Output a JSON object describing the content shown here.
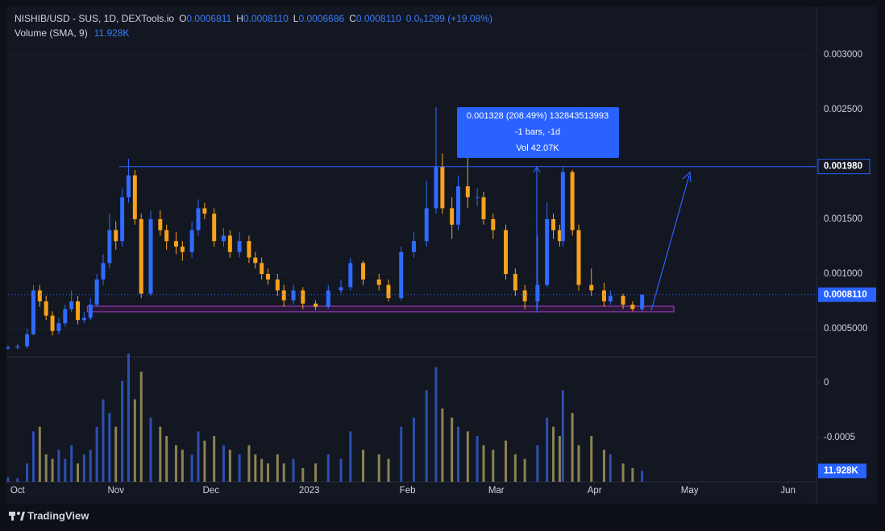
{
  "chart_data": {
    "type": "candlestick",
    "header": {
      "symbol": "NISHIB/USD - SUS, 1D, DEXTools.io",
      "o_tag": "O",
      "open": "0.0006811",
      "h_tag": "H",
      "high": "0.0008110",
      "l_tag": "L",
      "low": "0.0006686",
      "c_tag": "C",
      "close": "0.0008110",
      "change": "0.0₅1299 (+19.08%)",
      "volume_title": "Volume (SMA, 9)",
      "volume_value": "11.928K"
    },
    "x": [
      0,
      3,
      6,
      8,
      10,
      12,
      14,
      16,
      18,
      20,
      22,
      24,
      26,
      28,
      30,
      32,
      34,
      36,
      38,
      40,
      42,
      45,
      48,
      50,
      53,
      55,
      58,
      60,
      62,
      65,
      68,
      70,
      73,
      76,
      78,
      80,
      82,
      85,
      87,
      90,
      93,
      97,
      101,
      105,
      108,
      112,
      117,
      120,
      124,
      128,
      132,
      135,
      137,
      140,
      142,
      145,
      148,
      150,
      153,
      157,
      160,
      163,
      167,
      170,
      172,
      174,
      175,
      178,
      180,
      184,
      188,
      190,
      194,
      197,
      200
    ],
    "open": [
      0.00032,
      0.00033,
      0.00034,
      0.00045,
      0.00085,
      0.00075,
      0.00062,
      0.00048,
      0.00055,
      0.00068,
      0.00075,
      0.00058,
      0.0006,
      0.00072,
      0.00095,
      0.0011,
      0.0014,
      0.0013,
      0.0017,
      0.0019,
      0.0015,
      0.00082,
      0.0015,
      0.0014,
      0.0013,
      0.00125,
      0.0012,
      0.0014,
      0.0016,
      0.00155,
      0.0013,
      0.00135,
      0.0012,
      0.0013,
      0.00115,
      0.0011,
      0.001,
      0.00095,
      0.00085,
      0.00076,
      0.00085,
      0.00073,
      0.0007,
      0.00085,
      0.00088,
      0.0011,
      0.00095,
      0.0009,
      0.00078,
      0.0012,
      0.0013,
      0.0016,
      0.00198,
      0.0016,
      0.00145,
      0.0018,
      0.0017,
      0.0017,
      0.0015,
      0.0014,
      0.001,
      0.00085,
      0.00075,
      0.0009,
      0.0015,
      0.0014,
      0.0013,
      0.00193,
      0.0014,
      0.0009,
      0.00085,
      0.00075,
      0.0008,
      0.00072,
      0.00068
    ],
    "high": [
      0.00035,
      0.00036,
      0.0005,
      0.0009,
      0.0009,
      0.0008,
      0.00066,
      0.0006,
      0.00072,
      0.00085,
      0.0008,
      0.00065,
      0.00078,
      0.001,
      0.00118,
      0.00155,
      0.00148,
      0.00178,
      0.00205,
      0.00195,
      0.00155,
      0.00158,
      0.00158,
      0.00145,
      0.00138,
      0.0013,
      0.00148,
      0.00168,
      0.00165,
      0.0016,
      0.00142,
      0.0014,
      0.00138,
      0.00135,
      0.0012,
      0.00115,
      0.00105,
      0.001,
      0.0009,
      0.0009,
      0.00088,
      0.00076,
      0.0009,
      0.00095,
      0.00115,
      0.00112,
      0.001,
      0.00095,
      0.00125,
      0.00138,
      0.00185,
      0.00252,
      0.0021,
      0.0017,
      0.0019,
      0.00231,
      0.00178,
      0.00175,
      0.00155,
      0.00145,
      0.00105,
      0.0009,
      0.00135,
      0.00165,
      0.00155,
      0.00145,
      0.00198,
      0.00195,
      0.00145,
      0.00105,
      0.00092,
      0.00085,
      0.00082,
      0.00075,
      0.000811
    ],
    "low": [
      0.00031,
      0.00031,
      0.00032,
      0.00044,
      0.0007,
      0.00058,
      0.00044,
      0.00045,
      0.00052,
      0.00065,
      0.00054,
      0.00055,
      0.00058,
      0.0007,
      0.0009,
      0.00105,
      0.00122,
      0.00125,
      0.00165,
      0.00145,
      0.00078,
      0.0008,
      0.00135,
      0.00122,
      0.00118,
      0.00112,
      0.00115,
      0.00135,
      0.0015,
      0.00125,
      0.00125,
      0.00115,
      0.00115,
      0.0011,
      0.00105,
      0.00095,
      0.0009,
      0.0008,
      0.0007,
      0.00072,
      0.00068,
      0.00067,
      0.00068,
      0.00082,
      0.00085,
      0.0009,
      0.00085,
      0.00075,
      0.00076,
      0.00115,
      0.00125,
      0.00155,
      0.00155,
      0.00132,
      0.0014,
      0.0016,
      0.00162,
      0.00145,
      0.00132,
      0.00095,
      0.0008,
      0.00068,
      0.00068,
      0.00088,
      0.00132,
      0.00125,
      0.00125,
      0.00135,
      0.00085,
      0.0008,
      0.0007,
      0.00072,
      0.00068,
      0.00066,
      0.00066
    ],
    "close": [
      0.00033,
      0.00034,
      0.00045,
      0.00085,
      0.00075,
      0.00062,
      0.00048,
      0.00055,
      0.00068,
      0.00075,
      0.00058,
      0.0006,
      0.00072,
      0.00095,
      0.0011,
      0.0014,
      0.0013,
      0.0017,
      0.0019,
      0.0015,
      0.00082,
      0.0015,
      0.0014,
      0.0013,
      0.00125,
      0.0012,
      0.0014,
      0.0016,
      0.00155,
      0.0013,
      0.00135,
      0.0012,
      0.0013,
      0.00115,
      0.0011,
      0.001,
      0.00095,
      0.00085,
      0.00076,
      0.00085,
      0.00073,
      0.0007,
      0.00085,
      0.00088,
      0.0011,
      0.00095,
      0.0009,
      0.00078,
      0.0012,
      0.0013,
      0.0016,
      0.00198,
      0.0016,
      0.00145,
      0.0018,
      0.0017,
      0.0017,
      0.0015,
      0.0014,
      0.001,
      0.00085,
      0.00075,
      0.0009,
      0.0015,
      0.0014,
      0.0013,
      0.00193,
      0.0014,
      0.0009,
      0.00085,
      0.00075,
      0.0008,
      0.00072,
      0.00068,
      0.000811
    ],
    "volume": [
      5000,
      4000,
      20000,
      55000,
      60000,
      30000,
      25000,
      35000,
      25000,
      40000,
      20000,
      30000,
      35000,
      60000,
      90000,
      75000,
      60000,
      110000,
      140000,
      90000,
      120000,
      70000,
      60000,
      50000,
      40000,
      35000,
      30000,
      55000,
      45000,
      50000,
      40000,
      35000,
      30000,
      40000,
      30000,
      25000,
      20000,
      30000,
      20000,
      25000,
      15000,
      20000,
      30000,
      25000,
      55000,
      35000,
      30000,
      25000,
      60000,
      70000,
      100000,
      125000,
      80000,
      70000,
      60000,
      55000,
      50000,
      40000,
      35000,
      45000,
      30000,
      25000,
      40000,
      70000,
      60000,
      50000,
      100000,
      75000,
      40000,
      50000,
      35000,
      30000,
      20000,
      15000,
      12000
    ],
    "up_color": "#2f6bff",
    "down_color": "#f7a21b",
    "volume_up_color": "#2d4fb0",
    "volume_down_color": "#8c8352",
    "xlim": [
      0,
      255
    ],
    "xticks": [
      {
        "value": 3,
        "label": "Oct"
      },
      {
        "value": 34,
        "label": "Nov"
      },
      {
        "value": 64,
        "label": "Dec"
      },
      {
        "value": 95,
        "label": "2023"
      },
      {
        "value": 126,
        "label": "Feb"
      },
      {
        "value": 154,
        "label": "Mar"
      },
      {
        "value": 185,
        "label": "Apr"
      },
      {
        "value": 215,
        "label": "May"
      },
      {
        "value": 246,
        "label": "Jun"
      }
    ],
    "ylim": [
      0.000265,
      0.003426
    ],
    "yticks": [
      {
        "value": 0.003,
        "label": "0.003000"
      },
      {
        "value": 0.0025,
        "label": "0.002500"
      },
      {
        "value": 0.0015,
        "label": "0.001500"
      },
      {
        "value": 0.001,
        "label": "0.001000"
      },
      {
        "value": 0.0005,
        "label": "0.0005000"
      }
    ],
    "volume_ylim": [
      0,
      130000
    ],
    "indicator_ylim": [
      -0.000904,
      0.00022
    ],
    "indicator_yticks": [
      0,
      -0.0005
    ],
    "resistance": {
      "value": 0.00198,
      "label": "0.001980"
    },
    "last_price": {
      "value": 0.000811,
      "label": "0.0008110"
    },
    "support_zone": [
      0.000655,
      0.000706
    ],
    "volume_sma": {
      "value": 11928,
      "label": "11.928K"
    },
    "measure": {
      "line1": "0.001328 (208.49%) 132843513993",
      "line2": "-1 bars, -1d",
      "line3": "Vol 42.07K"
    },
    "footer": "TradingView"
  }
}
